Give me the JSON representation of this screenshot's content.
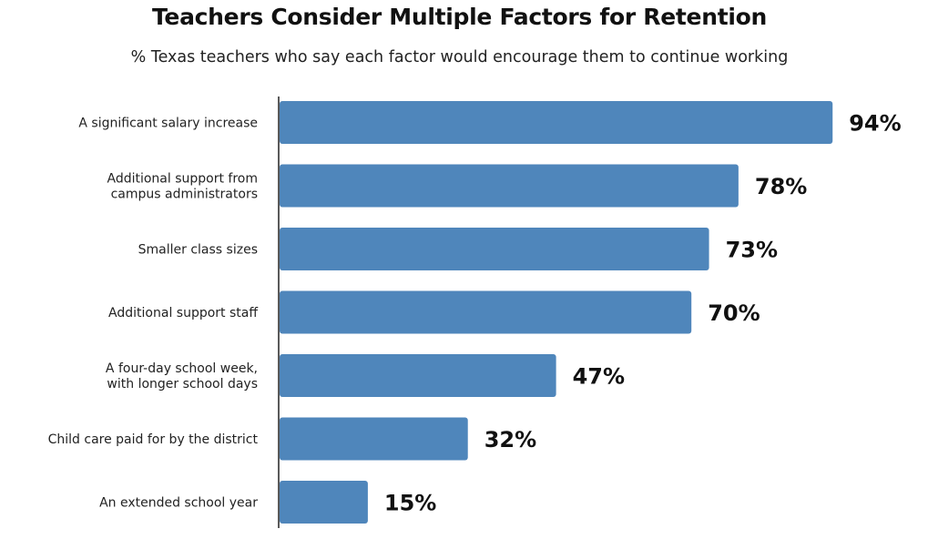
{
  "chart_data": {
    "type": "bar",
    "orientation": "horizontal",
    "title": "Teachers Consider Multiple Factors for Retention",
    "subtitle": "% Texas teachers who say each factor would encourage them to continue working",
    "categories": [
      [
        "A significant salary increase"
      ],
      [
        "Additional support from",
        "campus administrators"
      ],
      [
        "Smaller class sizes"
      ],
      [
        "Additional support staff"
      ],
      [
        "A four-day school week,",
        "with longer school days"
      ],
      [
        "Child care paid for by the district"
      ],
      [
        "An extended school year"
      ]
    ],
    "values": [
      94,
      78,
      73,
      70,
      47,
      32,
      15
    ],
    "value_labels": [
      "94%",
      "78%",
      "73%",
      "70%",
      "47%",
      "32%",
      "15%"
    ],
    "xlim": [
      0,
      100
    ],
    "grid": false,
    "legend": "none",
    "bar_color": "#4f86bb",
    "axis_color": "#222222"
  }
}
